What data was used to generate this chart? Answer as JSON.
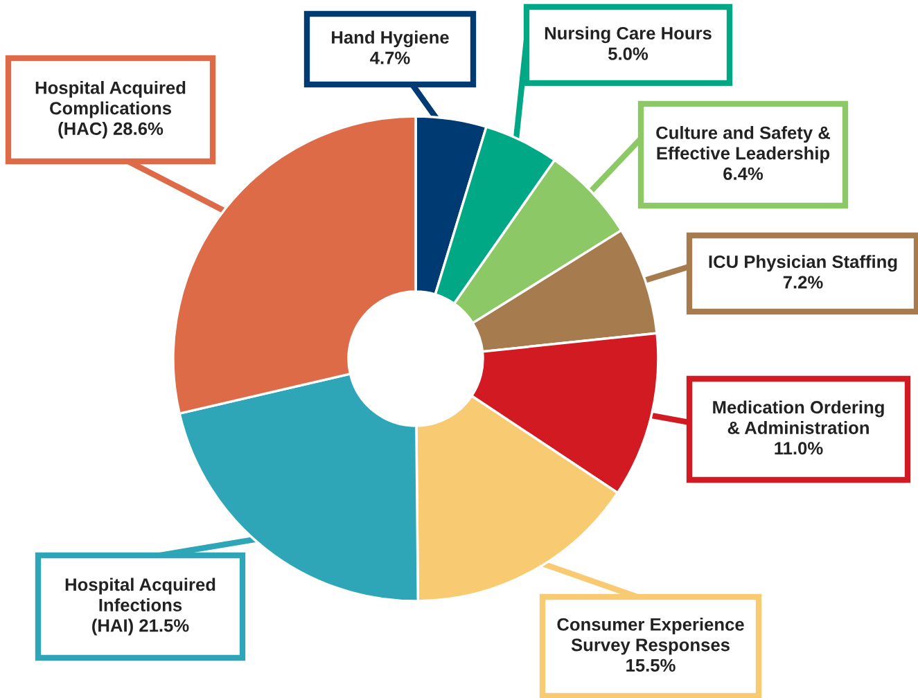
{
  "chart_data": {
    "type": "donut",
    "categories": [
      "Hand Hygiene",
      "Nursing Care Hours",
      "Culture and Safety &\nEffective Leadership",
      "ICU Physician Staffing",
      "Medication Ordering\n& Administration",
      "Consumer Experience\nSurvey Responses",
      "Hospital Acquired\nInfections\n(HAI)",
      "Hospital Acquired\nComplications\n(HAC)"
    ],
    "values": [
      4.7,
      5.0,
      6.4,
      7.2,
      11.0,
      15.5,
      21.5,
      28.6
    ],
    "value_labels": [
      "4.7%",
      "5.0%",
      "6.4%",
      "7.2%",
      "11.0%",
      "15.5%",
      "21.5%",
      "28.6%"
    ],
    "colors": [
      "#003a73",
      "#00a885",
      "#8cc865",
      "#a67c4e",
      "#d11a22",
      "#f8cb72",
      "#2ea6b8",
      "#de6b48"
    ]
  }
}
